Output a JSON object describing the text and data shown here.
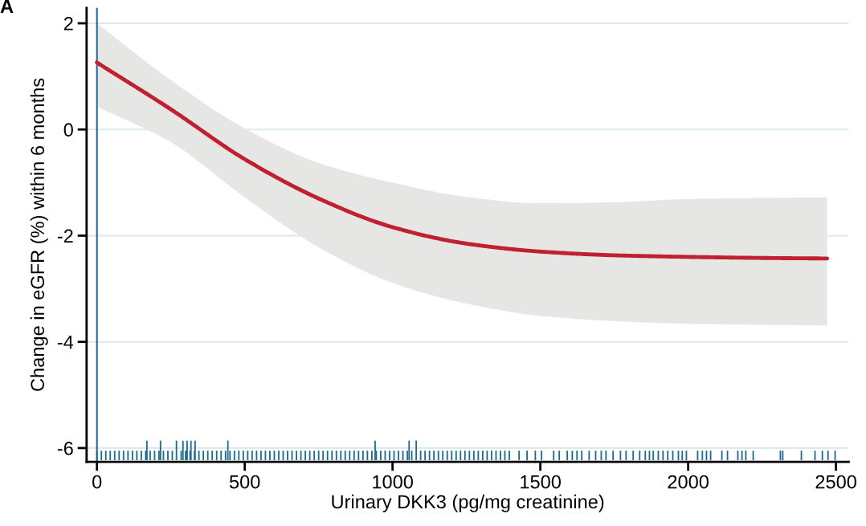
{
  "chart_data": {
    "type": "line",
    "xlabel": "Urinary DKK3 (pg/mg creatinine)",
    "ylabel": "Change in eGFR (%) within 6 months",
    "annotations": [
      "A"
    ],
    "xlim": [
      -35,
      2543
    ],
    "xticks": [
      0,
      500,
      1000,
      1500,
      2000,
      2500
    ],
    "ylim": [
      -6.26,
      2.29
    ],
    "yticks": [
      {
        "value": -6,
        "label": "-6"
      },
      {
        "value": -4,
        "label": "-4"
      },
      {
        "value": -2,
        "label": "-2"
      },
      0,
      2
    ],
    "grid": "y",
    "line_style": "solid",
    "marker": "none",
    "ref_lines": [
      {
        "axis": "x",
        "value": 0,
        "color": "#1f6a8f",
        "line_style": "solid"
      }
    ],
    "series": [
      {
        "color": "#c0202f",
        "x": [
          0,
          250,
          500,
          750,
          1000,
          1250,
          1500,
          1750,
          2000,
          2250,
          2470
        ],
        "values": [
          1.26,
          0.38,
          -0.56,
          -1.3,
          -1.84,
          -2.15,
          -2.3,
          -2.37,
          -2.4,
          -2.42,
          -2.43
        ],
        "lower": [
          0.43,
          -0.24,
          -1.28,
          -2.22,
          -2.89,
          -3.28,
          -3.51,
          -3.61,
          -3.66,
          -3.68,
          -3.69
        ],
        "upper": [
          2.0,
          0.93,
          0.02,
          -0.63,
          -1.0,
          -1.27,
          -1.39,
          -1.37,
          -1.31,
          -1.29,
          -1.28
        ]
      },
      {
        "type": "bar",
        "color": "#1f6a8f",
        "x": [
          0,
          15,
          30,
          45,
          60,
          75,
          90,
          105,
          120,
          135,
          150,
          165,
          169,
          180,
          195,
          210,
          215,
          225,
          240,
          255,
          269,
          285,
          291,
          300,
          305,
          315,
          318,
          330,
          332,
          345,
          360,
          375,
          390,
          405,
          420,
          435,
          443,
          450,
          465,
          480,
          495,
          510,
          525,
          540,
          555,
          570,
          585,
          600,
          615,
          630,
          645,
          660,
          675,
          690,
          705,
          720,
          735,
          750,
          765,
          780,
          795,
          810,
          825,
          840,
          855,
          870,
          885,
          900,
          915,
          930,
          941,
          945,
          960,
          975,
          990,
          1005,
          1020,
          1035,
          1050,
          1056,
          1065,
          1080,
          1095,
          1110,
          1125,
          1140,
          1155,
          1170,
          1185,
          1200,
          1215,
          1230,
          1245,
          1260,
          1275,
          1290,
          1305,
          1320,
          1335,
          1350,
          1365,
          1380,
          1395,
          1428,
          1455,
          1483,
          1504,
          1545,
          1564,
          1591,
          1608,
          1624,
          1640,
          1665,
          1687,
          1706,
          1722,
          1746,
          1771,
          1790,
          1814,
          1836,
          1855,
          1869,
          1882,
          1899,
          1915,
          1931,
          1948,
          1967,
          1980,
          1994,
          2032,
          2048,
          2062,
          2076,
          2114,
          2133,
          2168,
          2182,
          2195,
          2220,
          2312,
          2320,
          2383,
          2429,
          2454,
          2473,
          2497
        ],
        "base": [
          -6.23,
          -6.23,
          -6.23,
          -6.23,
          -6.23,
          -6.23,
          -6.23,
          -6.23,
          -6.23,
          -6.23,
          -6.23,
          -6.23,
          -6.23,
          -6.23,
          -6.23,
          -6.23,
          -6.23,
          -6.23,
          -6.23,
          -6.23,
          -6.23,
          -6.23,
          -6.23,
          -6.23,
          -6.23,
          -6.23,
          -6.23,
          -6.23,
          -6.23,
          -6.23,
          -6.23,
          -6.23,
          -6.23,
          -6.23,
          -6.23,
          -6.23,
          -6.23,
          -6.23,
          -6.23,
          -6.23,
          -6.23,
          -6.23,
          -6.23,
          -6.23,
          -6.23,
          -6.23,
          -6.23,
          -6.23,
          -6.23,
          -6.23,
          -6.23,
          -6.23,
          -6.23,
          -6.23,
          -6.23,
          -6.23,
          -6.23,
          -6.23,
          -6.23,
          -6.23,
          -6.23,
          -6.23,
          -6.23,
          -6.23,
          -6.23,
          -6.23,
          -6.23,
          -6.23,
          -6.23,
          -6.23,
          -6.23,
          -6.23,
          -6.23,
          -6.23,
          -6.23,
          -6.23,
          -6.23,
          -6.23,
          -6.23,
          -6.23,
          -6.23,
          -6.23,
          -6.23,
          -6.23,
          -6.23,
          -6.23,
          -6.23,
          -6.23,
          -6.23,
          -6.23,
          -6.23,
          -6.23,
          -6.23,
          -6.23,
          -6.23,
          -6.23,
          -6.23,
          -6.23,
          -6.23,
          -6.23,
          -6.23,
          -6.23,
          -6.23,
          -6.23,
          -6.23,
          -6.23,
          -6.23,
          -6.23,
          -6.23,
          -6.23,
          -6.23,
          -6.23,
          -6.23,
          -6.23,
          -6.23,
          -6.23,
          -6.23,
          -6.23,
          -6.23,
          -6.23,
          -6.23,
          -6.23,
          -6.23,
          -6.23,
          -6.23,
          -6.23,
          -6.23,
          -6.23,
          -6.23,
          -6.23,
          -6.23,
          -6.23,
          -6.23,
          -6.23,
          -6.23,
          -6.23,
          -6.23,
          -6.23,
          -6.23,
          -6.23,
          -6.23,
          -6.23,
          -6.23,
          -6.23,
          -6.23,
          -6.23,
          -6.23,
          -6.23,
          -6.23
        ],
        "values": [
          0.18,
          0.18,
          0.18,
          0.18,
          0.18,
          0.18,
          0.18,
          0.18,
          0.18,
          0.18,
          0.18,
          0.18,
          0.37,
          0.18,
          0.18,
          0.18,
          0.37,
          0.18,
          0.18,
          0.18,
          0.37,
          0.18,
          0.37,
          0.18,
          0.37,
          0.18,
          0.37,
          0.18,
          0.37,
          0.18,
          0.18,
          0.18,
          0.18,
          0.18,
          0.18,
          0.18,
          0.37,
          0.18,
          0.18,
          0.18,
          0.18,
          0.18,
          0.18,
          0.18,
          0.18,
          0.18,
          0.18,
          0.18,
          0.18,
          0.18,
          0.18,
          0.18,
          0.18,
          0.18,
          0.18,
          0.18,
          0.18,
          0.18,
          0.18,
          0.18,
          0.18,
          0.18,
          0.18,
          0.18,
          0.18,
          0.18,
          0.18,
          0.18,
          0.18,
          0.18,
          0.37,
          0.18,
          0.18,
          0.18,
          0.18,
          0.18,
          0.18,
          0.18,
          0.18,
          0.37,
          0.18,
          0.37,
          0.18,
          0.18,
          0.18,
          0.18,
          0.18,
          0.18,
          0.18,
          0.18,
          0.18,
          0.18,
          0.18,
          0.18,
          0.18,
          0.18,
          0.18,
          0.18,
          0.18,
          0.18,
          0.18,
          0.18,
          0.18,
          0.18,
          0.18,
          0.18,
          0.18,
          0.18,
          0.18,
          0.18,
          0.18,
          0.18,
          0.18,
          0.18,
          0.18,
          0.18,
          0.18,
          0.18,
          0.18,
          0.18,
          0.18,
          0.18,
          0.18,
          0.18,
          0.18,
          0.18,
          0.18,
          0.18,
          0.18,
          0.18,
          0.18,
          0.18,
          0.18,
          0.18,
          0.18,
          0.18,
          0.18,
          0.18,
          0.18,
          0.18,
          0.18,
          0.18,
          0.18,
          0.18,
          0.18,
          0.18,
          0.18,
          0.18,
          0.18
        ]
      }
    ]
  }
}
